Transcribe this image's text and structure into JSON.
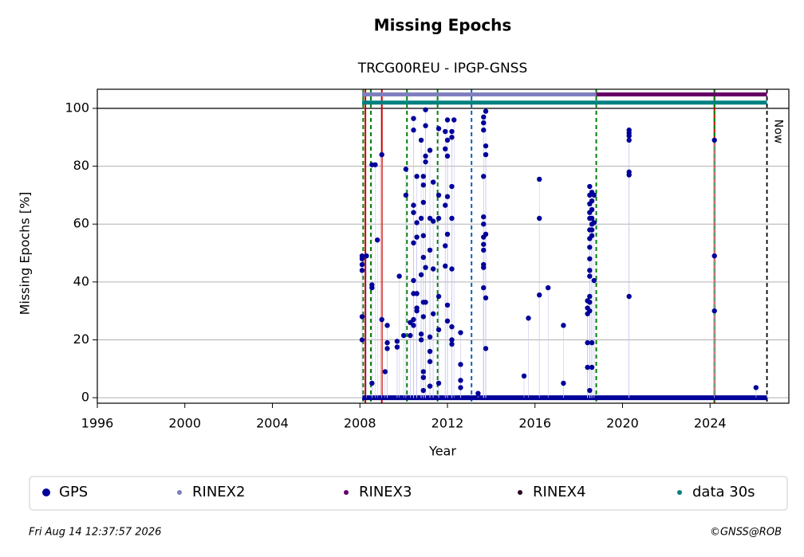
{
  "chart_data": {
    "type": "scatter",
    "title": "Missing Epochs",
    "subtitle": "TRCG00REU - IPGP-GNSS",
    "x_label": "Year",
    "y_label": "Missing Epochs [%]",
    "xlim": [
      1996,
      2027.6
    ],
    "ylim": [
      -1.9,
      106.6
    ],
    "xticks": [
      1996,
      2000,
      2004,
      2008,
      2012,
      2016,
      2020,
      2024
    ],
    "yticks": [
      0,
      20,
      40,
      60,
      80,
      100
    ],
    "grid": true,
    "hline": 100,
    "events": [
      {
        "x": 2008.15,
        "color": "#008000",
        "style": "dashed"
      },
      {
        "x": 2008.25,
        "color": "#cc0000",
        "style": "solid"
      },
      {
        "x": 2008.5,
        "color": "#008000",
        "style": "dashed"
      },
      {
        "x": 2009.0,
        "color": "#cc0000",
        "style": "solid"
      },
      {
        "x": 2010.15,
        "color": "#008000",
        "style": "dashed"
      },
      {
        "x": 2011.55,
        "color": "#008000",
        "style": "dashed"
      },
      {
        "x": 2013.1,
        "color": "#1060c0",
        "style": "dashed"
      },
      {
        "x": 2018.8,
        "color": "#008000",
        "style": "dashed"
      },
      {
        "x": 2024.2,
        "color": "#cc0000",
        "style": "solid"
      },
      {
        "x": 2024.2,
        "color": "#008000",
        "style": "dashed"
      }
    ],
    "now": {
      "x": 2026.6,
      "label": "Now"
    },
    "series": [
      {
        "name": "GPS",
        "color": "#00009a",
        "zero_span": {
          "start": 2008.1,
          "end": 2026.6,
          "value": 0
        },
        "x": [
          2008.1,
          2008.1,
          2008.1,
          2008.1,
          2008.1,
          2008.1,
          2008.3,
          2008.55,
          2008.55,
          2008.55,
          2008.55,
          2008.7,
          2008.8,
          2009.0,
          2009.0,
          2009.15,
          2009.25,
          2009.25,
          2009.25,
          2009.7,
          2009.7,
          2009.8,
          2010.0,
          2010.1,
          2010.1,
          2010.3,
          2010.3,
          2010.45,
          2010.45,
          2010.45,
          2010.45,
          2010.45,
          2010.45,
          2010.45,
          2010.45,
          2010.45,
          2010.6,
          2010.6,
          2010.6,
          2010.6,
          2010.6,
          2010.6,
          2010.8,
          2010.8,
          2010.8,
          2010.8,
          2010.8,
          2010.9,
          2010.9,
          2010.9,
          2010.9,
          2010.9,
          2010.9,
          2010.9,
          2010.9,
          2010.9,
          2010.9,
          2011.0,
          2011.0,
          2011.0,
          2011.0,
          2011.0,
          2011.0,
          2011.2,
          2011.2,
          2011.2,
          2011.2,
          2011.2,
          2011.2,
          2011.2,
          2011.35,
          2011.35,
          2011.35,
          2011.35,
          2011.6,
          2011.6,
          2011.6,
          2011.6,
          2011.6,
          2011.6,
          2011.9,
          2011.9,
          2011.9,
          2011.9,
          2011.9,
          2012.0,
          2012.0,
          2012.0,
          2012.0,
          2012.0,
          2012.0,
          2012.0,
          2012.2,
          2012.2,
          2012.2,
          2012.2,
          2012.2,
          2012.2,
          2012.2,
          2012.2,
          2012.3,
          2012.6,
          2012.6,
          2012.6,
          2012.6,
          2013.4,
          2013.65,
          2013.65,
          2013.65,
          2013.65,
          2013.65,
          2013.65,
          2013.65,
          2013.65,
          2013.65,
          2013.65,
          2013.65,
          2013.65,
          2013.75,
          2013.75,
          2013.75,
          2013.75,
          2013.75,
          2013.75,
          2015.5,
          2015.7,
          2016.2,
          2016.2,
          2016.2,
          2016.6,
          2017.3,
          2017.3,
          2018.4,
          2018.4,
          2018.4,
          2018.4,
          2018.4,
          2018.5,
          2018.5,
          2018.5,
          2018.5,
          2018.5,
          2018.5,
          2018.5,
          2018.5,
          2018.5,
          2018.5,
          2018.5,
          2018.5,
          2018.5,
          2018.5,
          2018.5,
          2018.6,
          2018.6,
          2018.6,
          2018.6,
          2018.6,
          2018.6,
          2018.6,
          2018.6,
          2018.6,
          2018.7,
          2018.7,
          2018.7,
          2020.3,
          2020.3,
          2020.3,
          2020.3,
          2020.3,
          2020.3,
          2020.3,
          2024.2,
          2024.2,
          2024.2,
          2026.1
        ],
        "values": [
          20,
          28,
          44,
          46,
          49,
          48,
          49,
          80.5,
          5,
          39,
          38,
          80.5,
          54.5,
          84,
          27,
          9,
          17,
          19,
          25,
          17.5,
          19.5,
          42,
          21.5,
          70,
          79,
          21.5,
          26,
          96.5,
          92.5,
          66.5,
          64,
          53.5,
          40.5,
          36,
          27,
          25,
          76.5,
          60.5,
          55.5,
          30,
          31,
          36,
          89,
          62,
          42.5,
          22,
          20,
          76.5,
          73.5,
          67.5,
          56,
          48.5,
          33,
          28,
          9,
          7,
          2.5,
          99.5,
          94,
          83.5,
          81.5,
          45,
          33,
          85.5,
          62,
          51,
          21,
          16,
          12.5,
          4,
          74.5,
          61,
          44.5,
          29,
          93,
          70,
          62,
          35,
          23.5,
          5,
          92,
          86,
          66.5,
          52.5,
          45.5,
          96,
          89,
          83.5,
          69.5,
          56.5,
          26.5,
          32,
          92,
          90,
          73,
          62,
          44.5,
          24.5,
          20,
          18.5,
          96,
          22.5,
          11.5,
          6,
          3.5,
          1.5,
          97,
          95,
          92.5,
          76.5,
          62.5,
          60,
          55.5,
          53,
          51,
          46,
          45,
          38,
          99,
          87,
          84,
          56.5,
          34.5,
          17,
          7.5,
          27.5,
          75.5,
          62,
          35.5,
          38,
          25,
          5,
          19,
          10.5,
          29,
          31,
          33.5,
          73,
          70,
          67,
          64,
          62,
          58,
          55,
          52,
          48,
          44,
          42,
          35,
          33,
          30,
          2.5,
          71,
          68,
          65,
          62,
          60,
          58,
          56,
          19,
          10.5,
          70,
          60.5,
          40.5,
          92.5,
          91.5,
          90.5,
          89,
          78,
          77,
          35,
          89,
          49,
          30,
          3.5
        ]
      },
      {
        "name": "RINEX2",
        "color": "#7f7fbf",
        "level": 104.8,
        "spans": [
          [
            2008.1,
            2018.8
          ]
        ]
      },
      {
        "name": "RINEX3",
        "color": "#660066",
        "level": 104.8,
        "spans": [
          [
            2018.8,
            2026.6
          ]
        ]
      },
      {
        "name": "RINEX4",
        "color": "#2a0022",
        "level": 104.8,
        "spans": []
      },
      {
        "name": "data 30s",
        "color": "#008080",
        "level": 102,
        "spans": [
          [
            2008.1,
            2026.6
          ]
        ]
      }
    ]
  },
  "footer": {
    "timestamp": "Fri Aug 14 12:37:57 2026",
    "credit": "©GNSS@ROB"
  }
}
